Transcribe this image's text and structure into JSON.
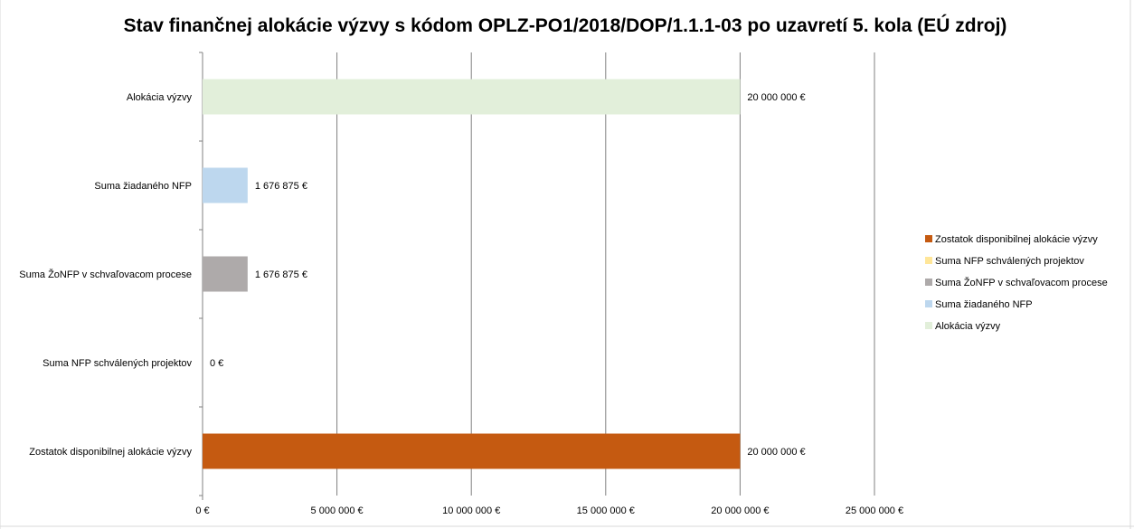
{
  "chart_data": {
    "type": "bar",
    "orientation": "horizontal",
    "title": "Stav finančnej alokácie výzvy s kódom OPLZ-PO1/2018/DOP/1.1.1-03 po uzavretí 5. kola (EÚ zdroj)",
    "xlabel": "",
    "ylabel": "",
    "xlim": [
      0,
      25000000
    ],
    "x_ticks": [
      0,
      5000000,
      10000000,
      15000000,
      20000000,
      25000000
    ],
    "x_tick_labels": [
      "0 €",
      "5 000 000 €",
      "10 000 000 €",
      "15 000 000 €",
      "20 000 000 €",
      "25 000 000 €"
    ],
    "grid": true,
    "legend_position": "right",
    "categories": [
      "Alokácia výzvy",
      "Suma žiadaného NFP",
      "Suma ŽoNFP v schvaľovacom procese",
      "Suma NFP schválených projektov",
      "Zostatok disponibilnej alokácie výzvy"
    ],
    "series": [
      {
        "name": "Alokácia výzvy",
        "color": "#e2efda",
        "category_index": 0,
        "value": 20000000,
        "label": "20 000 000 €"
      },
      {
        "name": "Suma žiadaného NFP",
        "color": "#bdd7ee",
        "category_index": 1,
        "value": 1676875,
        "label": "1 676 875 €"
      },
      {
        "name": "Suma ŽoNFP v schvaľovacom procese",
        "color": "#aeaaaa",
        "category_index": 2,
        "value": 1676875,
        "label": "1 676 875 €"
      },
      {
        "name": "Suma NFP schválených projektov",
        "color": "#ffe699",
        "category_index": 3,
        "value": 0,
        "label": "0 €"
      },
      {
        "name": "Zostatok disponibilnej alokácie výzvy",
        "color": "#c55a11",
        "category_index": 4,
        "value": 20000000,
        "label": "20 000 000 €"
      }
    ],
    "legend_order": [
      4,
      3,
      2,
      1,
      0
    ]
  }
}
